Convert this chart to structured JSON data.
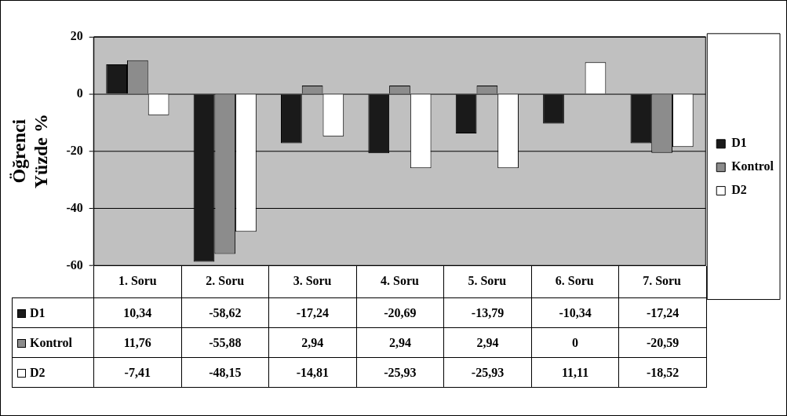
{
  "chart_data": {
    "type": "bar",
    "ylabel": "Öğrenci Yüzde %",
    "categories": [
      "1. Soru",
      "2. Soru",
      "3. Soru",
      "4. Soru",
      "5. Soru",
      "6. Soru",
      "7. Soru"
    ],
    "series": [
      {
        "name": "D1",
        "color": "#1a1a1a",
        "values": [
          10.34,
          -58.62,
          -17.24,
          -20.69,
          -13.79,
          -10.34,
          -17.24
        ],
        "value_labels": [
          "10,34",
          "-58,62",
          "-17,24",
          "-20,69",
          "-13,79",
          "-10,34",
          "-17,24"
        ]
      },
      {
        "name": "Kontrol",
        "color": "#8c8c8c",
        "values": [
          11.76,
          -55.88,
          2.94,
          2.94,
          2.94,
          0,
          -20.59
        ],
        "value_labels": [
          "11,76",
          "-55,88",
          "2,94",
          "2,94",
          "2,94",
          "0",
          "-20,59"
        ]
      },
      {
        "name": "D2",
        "color": "#ffffff",
        "values": [
          -7.41,
          -48.15,
          -14.81,
          -25.93,
          -25.93,
          11.11,
          -18.52
        ],
        "value_labels": [
          "-7,41",
          "-48,15",
          "-14,81",
          "-25,93",
          "-25,93",
          "11,11",
          "-18,52"
        ]
      }
    ],
    "ylim": [
      -60,
      20
    ],
    "yticks": [
      -60,
      -40,
      -20,
      0,
      20
    ],
    "grid": "y",
    "legend": "right"
  }
}
